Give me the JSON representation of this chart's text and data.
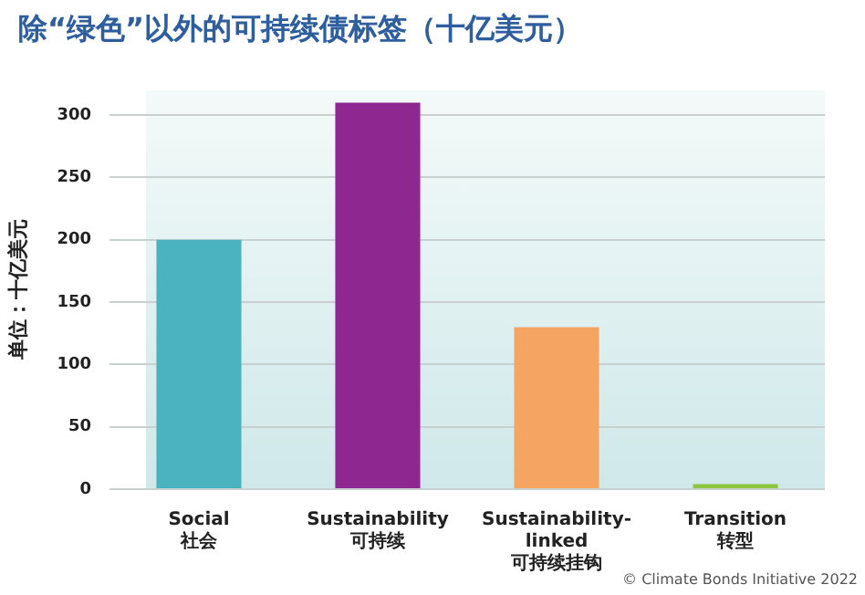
{
  "chart_data": {
    "type": "bar",
    "title": "除“绿色”以外的可持续债标签（十亿美元）",
    "ylabel": "单位：十亿美元",
    "categories": [
      "Social\n社会",
      "Sustainability\n可持续",
      "Sustainability-\nlinked\n可持续挂钩",
      "Transition\n转型"
    ],
    "values": [
      200,
      310,
      130,
      4
    ],
    "colors": [
      "#4bb3c0",
      "#8e278f",
      "#f5a462",
      "#8dc63f"
    ],
    "ylim": [
      0,
      320
    ],
    "yticks": [
      0,
      50,
      100,
      150,
      200,
      250,
      300
    ],
    "grid": "y",
    "annotations": [
      "© Climate Bonds Initiative 2022"
    ]
  }
}
